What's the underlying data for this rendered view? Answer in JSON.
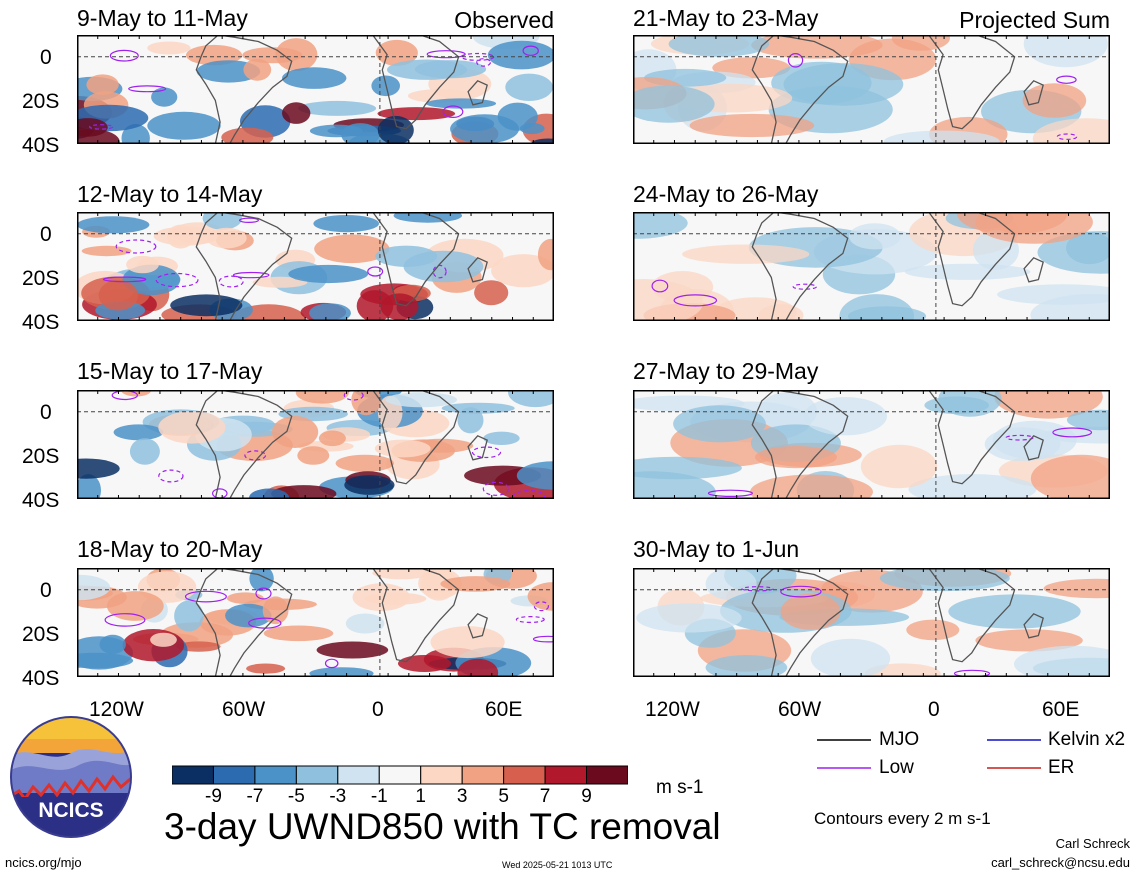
{
  "panels": {
    "p0": {
      "date_range": "9-May to 11-May",
      "corner_label": "Observed"
    },
    "p1": {
      "date_range": "12-May to 14-May"
    },
    "p2": {
      "date_range": "15-May to 17-May"
    },
    "p3": {
      "date_range": "18-May to 20-May"
    },
    "p4": {
      "date_range": "21-May to 23-May",
      "corner_label": "Projected Sum"
    },
    "p5": {
      "date_range": "24-May to 26-May"
    },
    "p6": {
      "date_range": "27-May to 29-May"
    },
    "p7": {
      "date_range": "30-May to 1-Jun"
    }
  },
  "lat_ticks": [
    "0",
    "20S",
    "40S"
  ],
  "lon_ticks": [
    "120W",
    "60W",
    "0",
    "60E"
  ],
  "colorbar": {
    "tick_labels": [
      "-9",
      "-7",
      "-5",
      "-3",
      "-1",
      "1",
      "3",
      "5",
      "7",
      "9"
    ],
    "colors": [
      "#0b2f63",
      "#2c6bb0",
      "#4b92c8",
      "#8fc1de",
      "#cfe3f0",
      "#f7f7f7",
      "#fbd7c4",
      "#f1a283",
      "#d6604d",
      "#b2182b",
      "#6b0a1e"
    ],
    "units": "m s-1"
  },
  "legend": {
    "mjo": {
      "label": "MJO",
      "color": "#000000"
    },
    "kelvin": {
      "label": "Kelvin x2",
      "color": "#1010c0"
    },
    "low": {
      "label": "Low",
      "color": "#a020f0"
    },
    "er": {
      "label": "ER",
      "color": "#c81e1e"
    },
    "contour_note": "Contours every 2 m s-1"
  },
  "title": "3-day UWND850 with TC removal",
  "footer": {
    "site": "ncics.org/mjo",
    "timestamp": "Wed 2025-05-21 1013 UTC",
    "author": "Carl Schreck",
    "email": "carl_schreck@ncsu.edu"
  },
  "logo": {
    "text": "NCICS"
  }
}
